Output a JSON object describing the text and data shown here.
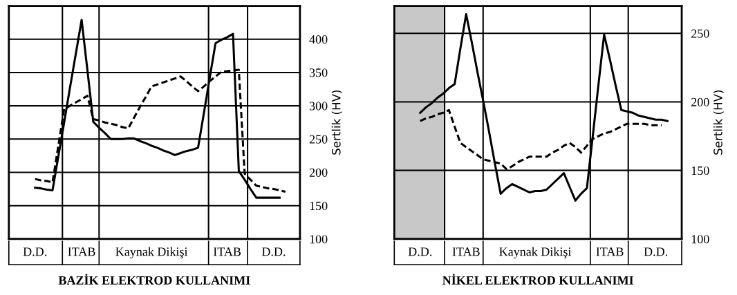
{
  "chart_data": [
    {
      "type": "line",
      "title": "BAZİK ELEKTROD KULLANIMI",
      "ylabel": "Sertlik (HV)",
      "ylim": [
        100,
        450
      ],
      "yticks": [
        100,
        150,
        200,
        250,
        300,
        350,
        400
      ],
      "grid": "y",
      "categories": [
        null,
        null,
        null,
        null,
        "D.D.",
        null,
        null,
        null,
        null,
        null,
        null,
        null,
        "ITAB",
        null,
        null,
        null,
        null,
        null,
        null,
        null,
        null,
        null,
        null,
        null,
        "Kaynak Dikişi",
        null,
        null,
        null,
        null,
        null,
        null,
        null,
        null,
        null,
        null,
        null,
        null,
        "ITAB",
        null,
        null,
        null,
        null,
        null,
        null,
        null,
        "D.D.",
        null,
        null,
        null,
        null
      ],
      "series": [
        {
          "color": "#000000",
          "line_style": "solid",
          "values": [
            null,
            null,
            null,
            null,
            177,
            176,
            174,
            173,
            224,
            275,
            327,
            378,
            429,
            353,
            276,
            267,
            259,
            250,
            250,
            250,
            251,
            251,
            247,
            244,
            240,
            237,
            233,
            230,
            226,
            229,
            232,
            234,
            237,
            289,
            342,
            394,
            399,
            403,
            408,
            202,
            189,
            175,
            162,
            162,
            162,
            162,
            162,
            null,
            null,
            null
          ]
        },
        {
          "color": "#000000",
          "line_style": "dashed",
          "values": [
            null,
            null,
            null,
            null,
            190,
            188,
            187,
            185,
            240,
            295,
            300,
            305,
            310,
            315,
            280,
            278,
            275,
            273,
            271,
            268,
            266,
            282,
            298,
            313,
            329,
            332,
            335,
            338,
            341,
            344,
            337,
            329,
            322,
            329,
            337,
            344,
            351,
            352,
            353,
            354,
            198,
            189,
            180,
            178,
            176,
            175,
            173,
            171,
            null,
            null
          ]
        }
      ]
    },
    {
      "type": "line",
      "title": "NİKEL ELEKTROD KULLANIMI",
      "ylabel": "Sertlik (HV)",
      "ylim": [
        100,
        270
      ],
      "yticks": [
        100,
        150,
        200,
        250
      ],
      "grid": "y",
      "categories": [
        null,
        null,
        null,
        null,
        "D.D.",
        null,
        null,
        null,
        null,
        null,
        null,
        null,
        "ITAB",
        null,
        null,
        null,
        null,
        null,
        null,
        null,
        null,
        null,
        null,
        null,
        "Kaynak Dikişi",
        null,
        null,
        null,
        null,
        null,
        null,
        null,
        null,
        null,
        null,
        null,
        null,
        "ITAB",
        null,
        null,
        null,
        null,
        null,
        null,
        null,
        "D.D.",
        null,
        null,
        null,
        null
      ],
      "series": [
        {
          "color": "#000000",
          "line_style": "solid",
          "values": [
            null,
            null,
            null,
            null,
            192,
            196,
            199,
            203,
            206,
            210,
            213,
            239,
            264,
            243,
            221,
            200,
            178,
            155,
            133,
            137,
            140,
            138,
            136,
            134,
            135,
            135,
            136,
            140,
            144,
            148,
            138,
            128,
            133,
            137,
            174,
            212,
            249,
            231,
            212,
            194,
            193,
            192,
            190,
            189,
            188,
            187,
            187,
            186,
            null,
            null
          ]
        },
        {
          "color": "#000000",
          "line_style": "dashed",
          "values": [
            null,
            null,
            null,
            null,
            186,
            188,
            189,
            191,
            192,
            194,
            182,
            170,
            167,
            164,
            161,
            158,
            157,
            156,
            155,
            151,
            153,
            156,
            158,
            160,
            160,
            160,
            160,
            163,
            165,
            168,
            170,
            167,
            163,
            168,
            173,
            175,
            177,
            178,
            180,
            182,
            184,
            184,
            184,
            184,
            183,
            183,
            183,
            null,
            null,
            null
          ]
        }
      ]
    }
  ]
}
